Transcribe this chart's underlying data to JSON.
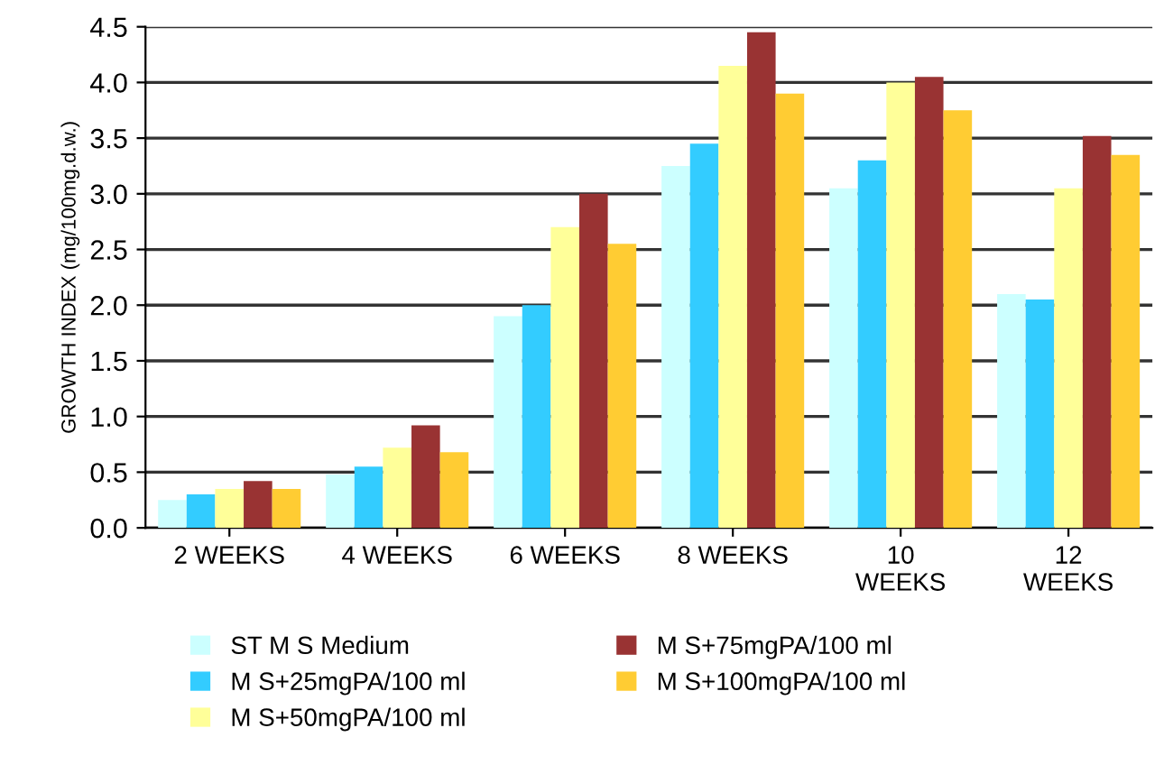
{
  "chart_data": {
    "type": "bar",
    "ylabel": "GROWTH INDEX (mg/100mg.d.w.)",
    "categories": [
      "2 WEEKS",
      "4 WEEKS",
      "6 WEEKS",
      "8 WEEKS",
      "10\nWEEKS",
      "12\nWEEKS"
    ],
    "series": [
      {
        "name": "ST M S Medium",
        "color": "#ccffff",
        "values": [
          0.25,
          0.48,
          1.9,
          3.25,
          3.05,
          2.1
        ]
      },
      {
        "name": "M S+25mgPA/100 ml",
        "color": "#33ccff",
        "values": [
          0.3,
          0.55,
          2.0,
          3.45,
          3.3,
          2.05
        ]
      },
      {
        "name": "M S+50mgPA/100 ml",
        "color": "#ffff99",
        "values": [
          0.35,
          0.72,
          2.7,
          4.15,
          4.0,
          3.05
        ]
      },
      {
        "name": "M S+75mgPA/100 ml",
        "color": "#993333",
        "values": [
          0.42,
          0.92,
          3.0,
          4.45,
          4.05,
          3.52
        ]
      },
      {
        "name": "M S+100mgPA/100 ml",
        "color": "#ffcc33",
        "values": [
          0.35,
          0.68,
          2.55,
          3.9,
          3.75,
          3.35
        ]
      }
    ],
    "ylim": [
      0,
      4.5
    ],
    "yticks": [
      {
        "value": 0,
        "label": "0.0"
      },
      0.5,
      {
        "value": 1,
        "label": "1.0"
      },
      1.5,
      {
        "value": 2,
        "label": "2.0"
      },
      2.5,
      {
        "value": 3,
        "label": "3.0"
      },
      3.5,
      {
        "value": 4,
        "label": "4.0"
      },
      4.5
    ],
    "grid": "y",
    "legend": "bottom"
  }
}
